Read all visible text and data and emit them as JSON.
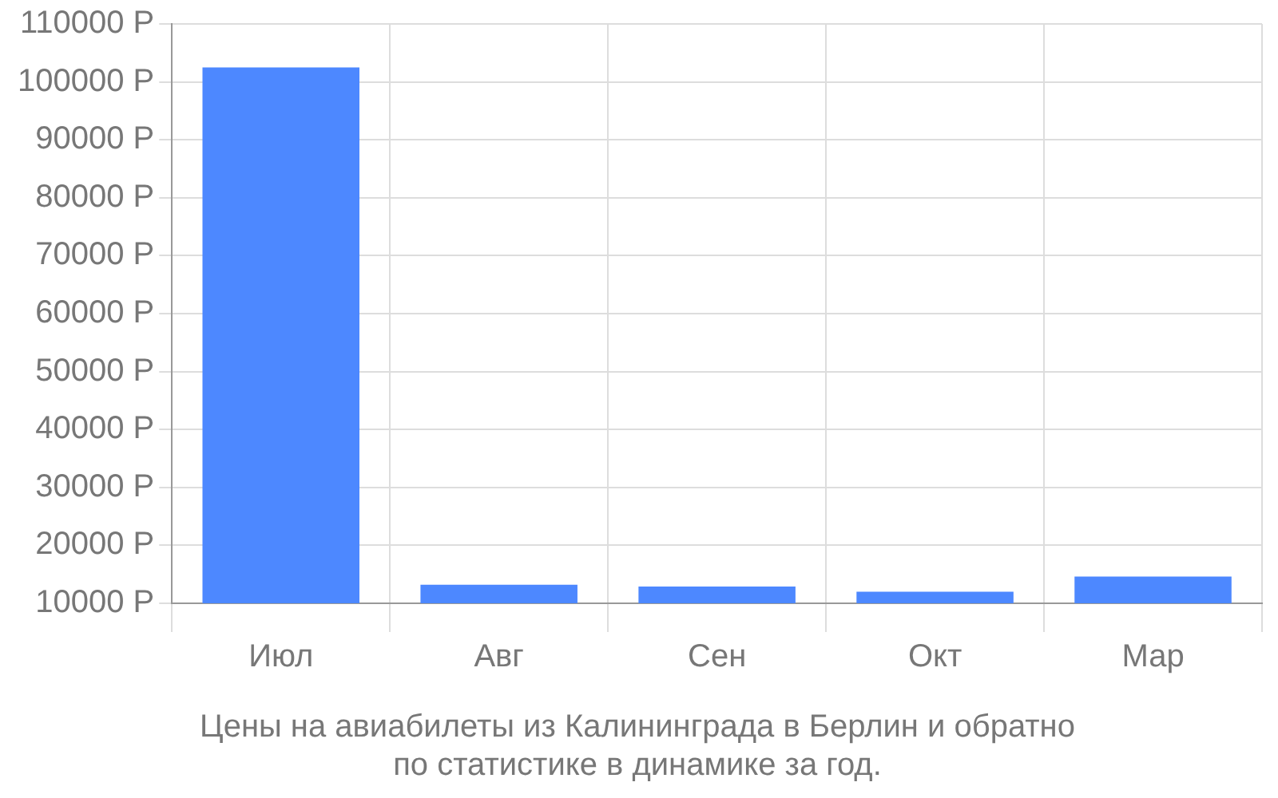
{
  "chart_data": {
    "type": "bar",
    "title": "Цены на авиабилеты из Калининграда в Берлин и обратно\nпо статистике в динамике за год.",
    "categories": [
      "Июл",
      "Авг",
      "Сен",
      "Окт",
      "Мар"
    ],
    "values": [
      102500,
      13200,
      12900,
      12000,
      14600
    ],
    "color": "#4d88ff",
    "ylim": [
      10000,
      110000
    ],
    "yticks": [
      {
        "value": 10000,
        "label": "10000 Р"
      },
      {
        "value": 20000,
        "label": "20000 Р"
      },
      {
        "value": 30000,
        "label": "30000 Р"
      },
      {
        "value": 40000,
        "label": "40000 Р"
      },
      {
        "value": 50000,
        "label": "50000 Р"
      },
      {
        "value": 60000,
        "label": "60000 Р"
      },
      {
        "value": 70000,
        "label": "70000 Р"
      },
      {
        "value": 80000,
        "label": "80000 Р"
      },
      {
        "value": 90000,
        "label": "90000 Р"
      },
      {
        "value": 100000,
        "label": "100000 Р"
      },
      {
        "value": 110000,
        "label": "110000 Р"
      }
    ],
    "grid": true
  }
}
